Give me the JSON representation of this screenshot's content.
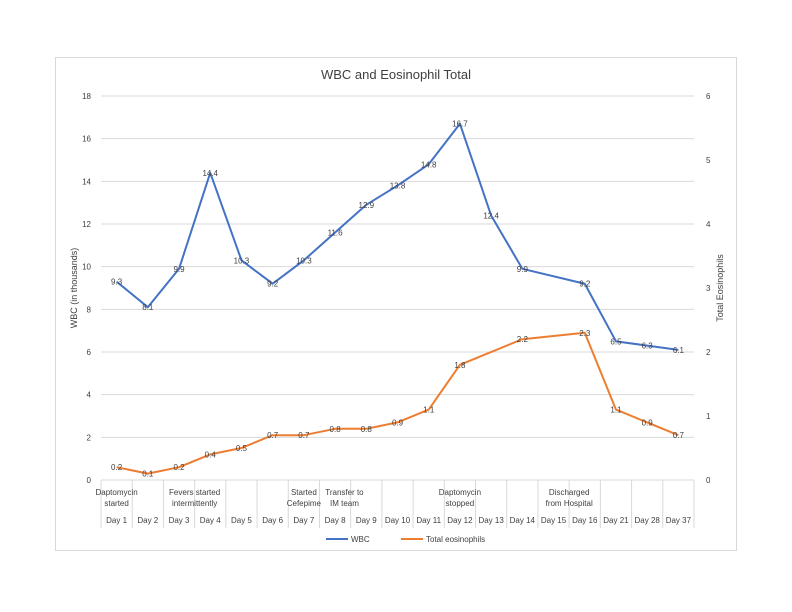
{
  "chart_data": {
    "type": "line",
    "title": "WBC and Eosinophil  Total",
    "ylabel": "WBC (in thousands)",
    "y2label": "Total Eosinophils",
    "ylim": [
      0,
      18
    ],
    "yticks": [
      "0",
      "2",
      "4",
      "6",
      "8",
      "10",
      "12",
      "14",
      "16",
      "18"
    ],
    "y2lim": [
      0,
      6
    ],
    "y2ticks": [
      "0",
      "1",
      "2",
      "3",
      "4",
      "5",
      "6"
    ],
    "categories": [
      "Day 1",
      "Day 2",
      "Day 3",
      "Day 4",
      "Day 5",
      "Day 6",
      "Day 7",
      "Day 8",
      "Day 9",
      "Day 10",
      "Day 11",
      "Day 12",
      "Day 13",
      "Day 14",
      "Day 15",
      "Day 16",
      "Day 21",
      "Day 28",
      "Day 37"
    ],
    "events": [
      {
        "day_index": 0,
        "lines": [
          "Daptomycin",
          "started"
        ]
      },
      {
        "day_index": 2,
        "lines": [
          "Fevers started",
          "intermittently"
        ]
      },
      {
        "day_index": 6,
        "lines": [
          "Started",
          "Cefepime"
        ]
      },
      {
        "day_index": 7,
        "lines": [
          "Transfer to",
          "IM team"
        ]
      },
      {
        "day_index": 11,
        "lines": [
          "Daptomycin",
          "stopped"
        ]
      },
      {
        "day_index": 14,
        "lines": [
          "Discharged",
          "from Hospital"
        ]
      }
    ],
    "series": [
      {
        "name": "WBC",
        "axis": "left",
        "color": "#4472c4",
        "values": [
          9.3,
          8.1,
          9.9,
          14.4,
          10.3,
          9.2,
          10.3,
          11.6,
          12.9,
          13.8,
          14.8,
          16.7,
          12.4,
          9.9,
          null,
          9.2,
          6.5,
          6.3,
          6.1
        ]
      },
      {
        "name": "Total eosinophils",
        "axis": "right",
        "color": "#ed7d31",
        "values": [
          0.2,
          0.1,
          0.2,
          0.4,
          0.5,
          0.7,
          0.7,
          0.8,
          0.8,
          0.9,
          1.1,
          1.8,
          null,
          2.2,
          null,
          2.3,
          1.1,
          0.9,
          0.7
        ]
      }
    ],
    "grid": true,
    "legend": "bottom"
  }
}
